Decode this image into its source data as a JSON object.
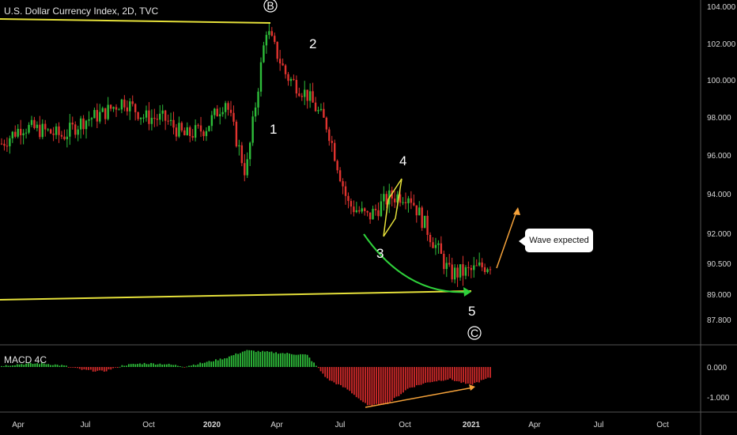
{
  "chart_data": [
    {
      "type": "candlestick",
      "title": "U.S. Dollar Currency Index, 2D, TVC",
      "y_ticks": [
        "104.000",
        "102.000",
        "100.000",
        "98.000",
        "96.000",
        "94.000",
        "92.000",
        "90.500",
        "89.000",
        "87.800"
      ],
      "y_tick_values": [
        104,
        102,
        100,
        98,
        96,
        94,
        92,
        90.5,
        89,
        87.8
      ],
      "x_ticks": [
        "Apr",
        "Jul",
        "Oct",
        "2020",
        "Apr",
        "Jul",
        "Oct",
        "2021",
        "Apr",
        "Jul",
        "Oct"
      ],
      "x": [
        "2019-03",
        "2019-04",
        "2019-05",
        "2019-06",
        "2019-07",
        "2019-08",
        "2019-09",
        "2019-10",
        "2019-11",
        "2019-12",
        "2020-01",
        "2020-02",
        "2020-03-05",
        "2020-03-20",
        "2020-04",
        "2020-05",
        "2020-06",
        "2020-07",
        "2020-08",
        "2020-09",
        "2020-10",
        "2020-11",
        "2020-12",
        "2021-01",
        "2021-02"
      ],
      "close": [
        96.6,
        97.5,
        97.3,
        97.0,
        97.8,
        98.2,
        98.9,
        98.0,
        97.9,
        97.0,
        97.4,
        98.9,
        95.0,
        102.8,
        100.2,
        99.2,
        97.5,
        93.5,
        92.8,
        93.8,
        94.0,
        92.0,
        90.0,
        90.1,
        90.5
      ],
      "ylim": [
        86.8,
        104.3
      ],
      "annotations": {
        "waves": [
          "1",
          "2",
          "3",
          "4",
          "5"
        ],
        "circled": [
          "B",
          "C"
        ],
        "callout": "Wave expected"
      }
    },
    {
      "type": "histogram",
      "title": "MACD 4C",
      "y_ticks": [
        "0.000",
        "-1.000"
      ],
      "y_tick_values": [
        0,
        -1
      ],
      "values": [
        0.04,
        0.1,
        0.12,
        0.05,
        -0.1,
        -0.15,
        0.06,
        0.12,
        0.1,
        0.02,
        0.15,
        0.3,
        0.55,
        0.5,
        0.45,
        0.4,
        -0.4,
        -0.75,
        -1.3,
        -1.2,
        -0.7,
        -0.5,
        -0.4,
        -0.6,
        -0.35
      ]
    }
  ]
}
